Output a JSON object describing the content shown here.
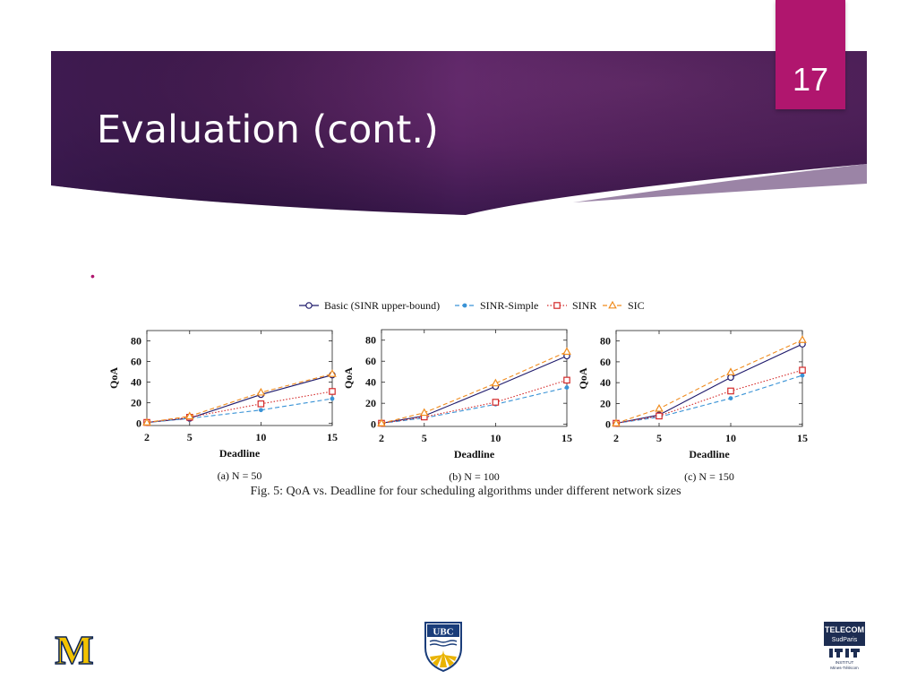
{
  "slide": {
    "number": "17",
    "title": "Evaluation (cont.)",
    "bullet": "•"
  },
  "theme": {
    "banner_dark": "#3d1b52",
    "banner_mid": "#6a2a6c",
    "accent": "#b0166e"
  },
  "figure": {
    "legend": [
      {
        "label": "Basic (SINR upper-bound)",
        "color": "#1f1a6b",
        "marker": "circle",
        "dash": "solid"
      },
      {
        "label": "SINR-Simple",
        "color": "#3a93d6",
        "marker": "dot",
        "dash": "dashed"
      },
      {
        "label": "SINR",
        "color": "#d42a2a",
        "marker": "square",
        "dash": "dotted"
      },
      {
        "label": "SIC",
        "color": "#f08c1e",
        "marker": "triangle",
        "dash": "dashed"
      }
    ],
    "caption": "Fig. 5: QoA vs. Deadline for four scheduling algorithms under different network sizes"
  },
  "chart_data": [
    {
      "type": "line",
      "subcaption": "(a) N = 50",
      "xlabel": "Deadline",
      "ylabel": "QoA",
      "x": [
        2,
        5,
        10,
        15
      ],
      "xticks": [
        2,
        5,
        10,
        15
      ],
      "yticks": [
        0,
        20,
        40,
        60,
        80
      ],
      "xlim": [
        2,
        15
      ],
      "ylim": [
        -2,
        90
      ],
      "series": [
        {
          "name": "Basic (SINR upper-bound)",
          "values": [
            1,
            5,
            28,
            47
          ]
        },
        {
          "name": "SINR-Simple",
          "values": [
            1,
            5,
            13,
            24
          ]
        },
        {
          "name": "SINR",
          "values": [
            1,
            6,
            19,
            31
          ]
        },
        {
          "name": "SIC",
          "values": [
            1,
            7,
            30,
            48
          ]
        }
      ]
    },
    {
      "type": "line",
      "subcaption": "(b) N = 100",
      "xlabel": "Deadline",
      "ylabel": "QoA",
      "x": [
        2,
        5,
        10,
        15
      ],
      "xticks": [
        2,
        5,
        10,
        15
      ],
      "yticks": [
        0,
        20,
        40,
        60,
        80
      ],
      "xlim": [
        2,
        15
      ],
      "ylim": [
        -2,
        90
      ],
      "series": [
        {
          "name": "Basic (SINR upper-bound)",
          "values": [
            1,
            8,
            36,
            65
          ]
        },
        {
          "name": "SINR-Simple",
          "values": [
            1,
            6,
            19,
            35
          ]
        },
        {
          "name": "SINR",
          "values": [
            1,
            7,
            21,
            42
          ]
        },
        {
          "name": "SIC",
          "values": [
            1,
            11,
            39,
            69
          ]
        }
      ]
    },
    {
      "type": "line",
      "subcaption": "(c) N = 150",
      "xlabel": "Deadline",
      "ylabel": "QoA",
      "x": [
        2,
        5,
        10,
        15
      ],
      "xticks": [
        2,
        5,
        10,
        15
      ],
      "yticks": [
        0,
        20,
        40,
        60,
        80
      ],
      "xlim": [
        2,
        15
      ],
      "ylim": [
        -2,
        90
      ],
      "series": [
        {
          "name": "Basic (SINR upper-bound)",
          "values": [
            1,
            9,
            45,
            77
          ]
        },
        {
          "name": "SINR-Simple",
          "values": [
            1,
            7,
            25,
            47
          ]
        },
        {
          "name": "SINR",
          "values": [
            1,
            8,
            32,
            52
          ]
        },
        {
          "name": "SIC",
          "values": [
            1,
            15,
            50,
            81
          ]
        }
      ]
    }
  ],
  "logos": {
    "michigan": "M",
    "ubc": "UBC",
    "telecom_top": "TELECOM",
    "telecom_sub": "SudParis",
    "telecom_institut": "INSTITUT",
    "telecom_mines": "Mines-Télécom"
  }
}
